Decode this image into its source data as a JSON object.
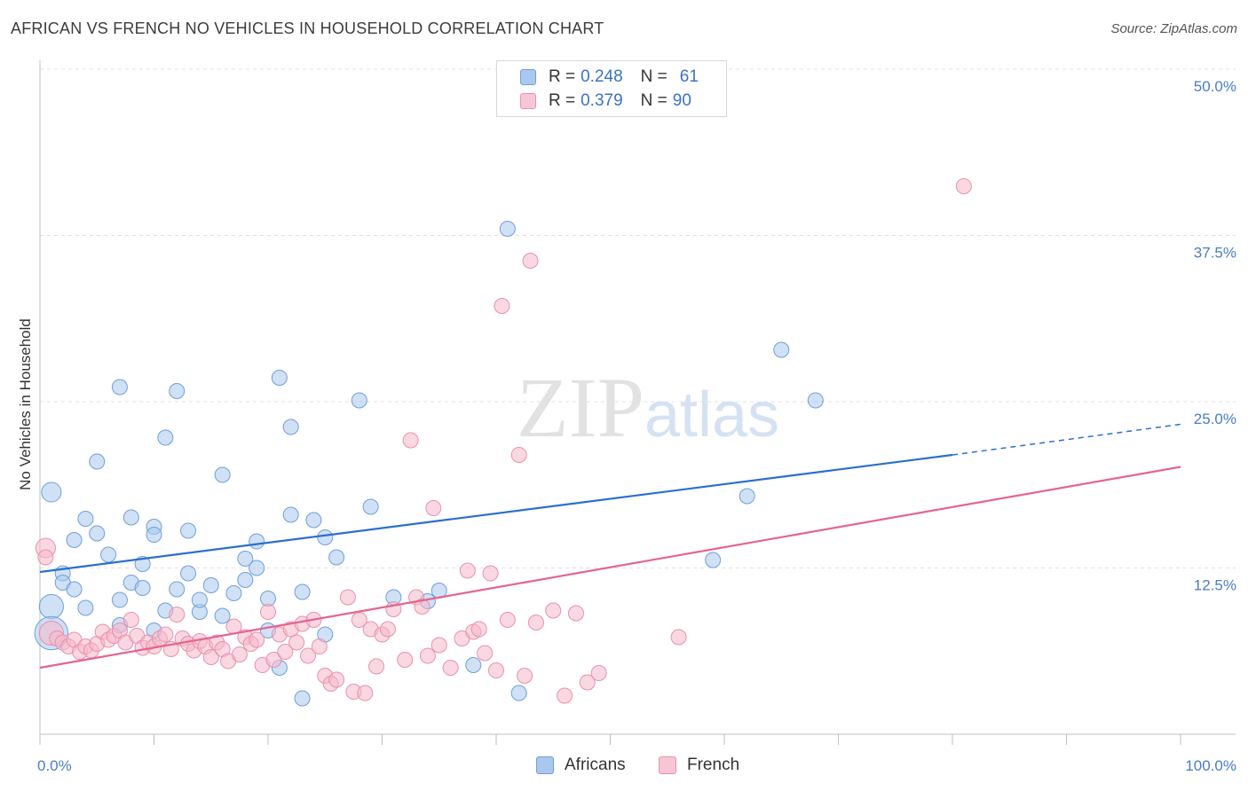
{
  "title": "AFRICAN VS FRENCH NO VEHICLES IN HOUSEHOLD CORRELATION CHART",
  "source": "Source: ZipAtlas.com",
  "watermark": {
    "zip": "ZIP",
    "atlas": "atlas"
  },
  "legend": {
    "rows": [
      {
        "r_label": "R = ",
        "r_value": "0.248",
        "n_label": "N = ",
        "n_value": "61"
      },
      {
        "r_label": "R = ",
        "r_value": "0.379",
        "n_label": "N = ",
        "n_value": "90"
      }
    ]
  },
  "bottom_legend": {
    "africans": "Africans",
    "french": "French"
  },
  "chart_data": {
    "type": "scatter",
    "xlabel": "",
    "ylabel": "No Vehicles in Household",
    "xlim": [
      0,
      100
    ],
    "ylim": [
      0,
      50
    ],
    "x_tick_labels": [
      "0.0%",
      "100.0%"
    ],
    "y_ticks": [
      12.5,
      25.0,
      37.5,
      50.0
    ],
    "y_tick_labels": [
      "12.5%",
      "25.0%",
      "37.5%",
      "50.0%"
    ],
    "grid": true,
    "legend_position": "top-center",
    "colors": {
      "africans_fill": "#aac8ee",
      "africans_stroke": "#6f9fd8",
      "africans_line": "#2a6fcf",
      "french_fill": "#f6b8cb",
      "french_stroke": "#e890ae",
      "french_line": "#e4648f"
    },
    "series": [
      {
        "name": "Africans",
        "trend": {
          "x": [
            0,
            80,
            100
          ],
          "y": [
            12.2,
            21.0,
            23.3
          ],
          "solid_until": 80
        },
        "points": [
          [
            1,
            18.2,
            1.3
          ],
          [
            1,
            9.6,
            1.6
          ],
          [
            1,
            7.6,
            2.2
          ],
          [
            2,
            12.1,
            1
          ],
          [
            2,
            11.4,
            1
          ],
          [
            3,
            10.9,
            1
          ],
          [
            3,
            14.6,
            1
          ],
          [
            4,
            16.2,
            1
          ],
          [
            4,
            9.5,
            1
          ],
          [
            5,
            20.5,
            1
          ],
          [
            5,
            15.1,
            1
          ],
          [
            6,
            13.5,
            1
          ],
          [
            7,
            26.1,
            1
          ],
          [
            7,
            10.1,
            1
          ],
          [
            7,
            8.2,
            1
          ],
          [
            8,
            11.4,
            1
          ],
          [
            8,
            16.3,
            1
          ],
          [
            9,
            11.0,
            1
          ],
          [
            9,
            12.8,
            1
          ],
          [
            10,
            7.8,
            1
          ],
          [
            10,
            15.6,
            1
          ],
          [
            10,
            15.0,
            1
          ],
          [
            11,
            22.3,
            1
          ],
          [
            11,
            9.3,
            1
          ],
          [
            12,
            10.9,
            1
          ],
          [
            12,
            25.8,
            1
          ],
          [
            13,
            15.3,
            1
          ],
          [
            13,
            12.1,
            1
          ],
          [
            14,
            9.2,
            1
          ],
          [
            14,
            10.1,
            1
          ],
          [
            15,
            11.2,
            1
          ],
          [
            16,
            19.5,
            1
          ],
          [
            16,
            8.9,
            1
          ],
          [
            17,
            10.6,
            1
          ],
          [
            18,
            11.6,
            1
          ],
          [
            18,
            13.2,
            1
          ],
          [
            19,
            14.5,
            1
          ],
          [
            19,
            12.5,
            1
          ],
          [
            20,
            10.2,
            1
          ],
          [
            20,
            7.8,
            1
          ],
          [
            21,
            5.0,
            1
          ],
          [
            21,
            26.8,
            1
          ],
          [
            22,
            23.1,
            1
          ],
          [
            22,
            16.5,
            1
          ],
          [
            23,
            10.7,
            1
          ],
          [
            23,
            2.7,
            1
          ],
          [
            24,
            16.1,
            1
          ],
          [
            25,
            14.8,
            1
          ],
          [
            25,
            7.5,
            1
          ],
          [
            26,
            13.3,
            1
          ],
          [
            28,
            25.1,
            1
          ],
          [
            29,
            17.1,
            1
          ],
          [
            31,
            10.3,
            1
          ],
          [
            34,
            10.0,
            1
          ],
          [
            35,
            10.8,
            1
          ],
          [
            38,
            5.2,
            1
          ],
          [
            41,
            38.0,
            1
          ],
          [
            42,
            3.1,
            1
          ],
          [
            59,
            13.1,
            1
          ],
          [
            62,
            17.9,
            1
          ],
          [
            65,
            28.9,
            1
          ],
          [
            68,
            25.1,
            1
          ]
        ]
      },
      {
        "name": "French",
        "trend": {
          "x": [
            0,
            100
          ],
          "y": [
            5.0,
            20.1
          ]
        },
        "points": [
          [
            0.5,
            14.0,
            1.3
          ],
          [
            0.5,
            13.3,
            1
          ],
          [
            1,
            7.6,
            1.6
          ],
          [
            1.5,
            7.2,
            1
          ],
          [
            2,
            6.9,
            1
          ],
          [
            2.5,
            6.6,
            1
          ],
          [
            3,
            7.1,
            1
          ],
          [
            3.5,
            6.2,
            1
          ],
          [
            4,
            6.6,
            1
          ],
          [
            4.5,
            6.3,
            1
          ],
          [
            5,
            6.8,
            1
          ],
          [
            5.5,
            7.7,
            1
          ],
          [
            6,
            7.1,
            1
          ],
          [
            6.5,
            7.4,
            1
          ],
          [
            7,
            7.8,
            1
          ],
          [
            7.5,
            6.9,
            1
          ],
          [
            8,
            8.6,
            1
          ],
          [
            8.5,
            7.4,
            1
          ],
          [
            9,
            6.5,
            1
          ],
          [
            9.5,
            6.9,
            1
          ],
          [
            10,
            6.6,
            1
          ],
          [
            10.5,
            7.2,
            1
          ],
          [
            11,
            7.5,
            1
          ],
          [
            11.5,
            6.4,
            1
          ],
          [
            12,
            9.0,
            1
          ],
          [
            12.5,
            7.2,
            1
          ],
          [
            13,
            6.8,
            1
          ],
          [
            13.5,
            6.3,
            1
          ],
          [
            14,
            7.0,
            1
          ],
          [
            14.5,
            6.6,
            1
          ],
          [
            15,
            5.8,
            1
          ],
          [
            15.5,
            6.9,
            1
          ],
          [
            16,
            6.4,
            1
          ],
          [
            16.5,
            5.5,
            1
          ],
          [
            17,
            8.1,
            1
          ],
          [
            17.5,
            6.0,
            1
          ],
          [
            18,
            7.3,
            1
          ],
          [
            18.5,
            6.8,
            1
          ],
          [
            19,
            7.1,
            1
          ],
          [
            19.5,
            5.2,
            1
          ],
          [
            20,
            9.2,
            1
          ],
          [
            20.5,
            5.6,
            1
          ],
          [
            21,
            7.5,
            1
          ],
          [
            21.5,
            6.2,
            1
          ],
          [
            22,
            7.9,
            1
          ],
          [
            22.5,
            6.9,
            1
          ],
          [
            23,
            8.3,
            1
          ],
          [
            23.5,
            5.9,
            1
          ],
          [
            24,
            8.6,
            1
          ],
          [
            24.5,
            6.6,
            1
          ],
          [
            25,
            4.4,
            1
          ],
          [
            25.5,
            3.8,
            1
          ],
          [
            26,
            4.1,
            1
          ],
          [
            27,
            10.3,
            1
          ],
          [
            27.5,
            3.2,
            1
          ],
          [
            28,
            8.6,
            1
          ],
          [
            28.5,
            3.1,
            1
          ],
          [
            29,
            7.9,
            1
          ],
          [
            29.5,
            5.1,
            1
          ],
          [
            30,
            7.5,
            1
          ],
          [
            30.5,
            7.9,
            1
          ],
          [
            31,
            9.4,
            1
          ],
          [
            32,
            5.6,
            1
          ],
          [
            32.5,
            22.1,
            1
          ],
          [
            33,
            10.3,
            1
          ],
          [
            33.5,
            9.6,
            1
          ],
          [
            34,
            5.9,
            1
          ],
          [
            34.5,
            17.0,
            1
          ],
          [
            35,
            6.7,
            1
          ],
          [
            36,
            5.0,
            1
          ],
          [
            37,
            7.2,
            1
          ],
          [
            37.5,
            12.3,
            1
          ],
          [
            38,
            7.7,
            1
          ],
          [
            38.5,
            7.9,
            1
          ],
          [
            39,
            6.1,
            1
          ],
          [
            39.5,
            12.1,
            1
          ],
          [
            40,
            4.8,
            1
          ],
          [
            40.5,
            32.2,
            1
          ],
          [
            41,
            8.6,
            1
          ],
          [
            42,
            21.0,
            1
          ],
          [
            42.5,
            4.4,
            1
          ],
          [
            43,
            35.6,
            1
          ],
          [
            43.5,
            8.4,
            1
          ],
          [
            45,
            9.3,
            1
          ],
          [
            46,
            2.9,
            1
          ],
          [
            47,
            9.1,
            1
          ],
          [
            48,
            3.9,
            1
          ],
          [
            49,
            4.6,
            1
          ],
          [
            56,
            7.3,
            1
          ],
          [
            81,
            41.2,
            1
          ]
        ]
      }
    ]
  }
}
